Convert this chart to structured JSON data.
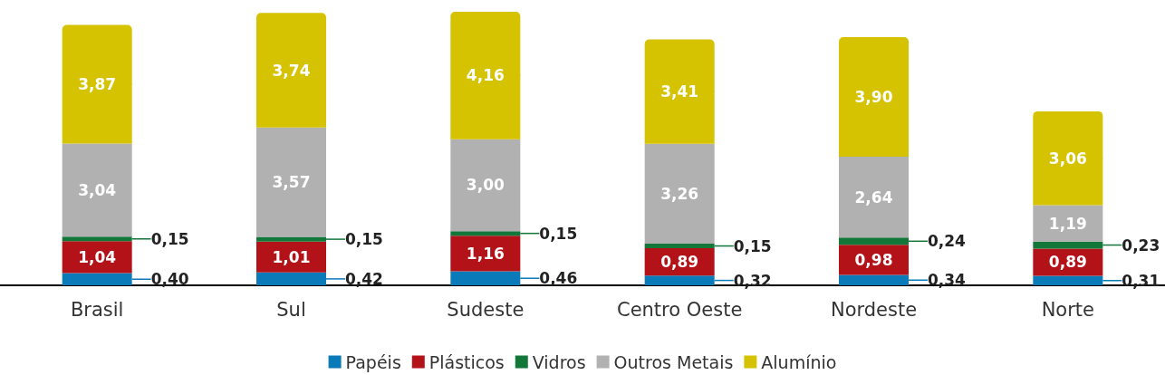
{
  "chart_data": {
    "type": "bar",
    "stacked": true,
    "categories": [
      "Brasil",
      "Sul",
      "Sudeste",
      "Centro Oeste",
      "Nordeste",
      "Norte"
    ],
    "series": [
      {
        "name": "Papéis",
        "color": "#0a7bb8",
        "values": [
          0.4,
          0.42,
          0.46,
          0.32,
          0.34,
          0.31
        ],
        "value_labels": [
          "0,40",
          "0,42",
          "0,46",
          "0,32",
          "0,34",
          "0,31"
        ]
      },
      {
        "name": "Plásticos",
        "color": "#b31219",
        "values": [
          1.04,
          1.01,
          1.16,
          0.89,
          0.98,
          0.89
        ],
        "value_labels": [
          "1,04",
          "1,01",
          "1,16",
          "0,89",
          "0,98",
          "0,89"
        ]
      },
      {
        "name": "Vidros",
        "color": "#13773a",
        "values": [
          0.15,
          0.15,
          0.15,
          0.15,
          0.24,
          0.23
        ],
        "value_labels": [
          "0,15",
          "0,15",
          "0,15",
          "0,15",
          "0,24",
          "0,23"
        ]
      },
      {
        "name": "Outros Metais",
        "color": "#b1b1b1",
        "values": [
          3.04,
          3.57,
          3.0,
          3.26,
          2.64,
          1.19
        ],
        "value_labels": [
          "3,04",
          "3,57",
          "3,00",
          "3,26",
          "2,64",
          "1,19"
        ]
      },
      {
        "name": "Alumínio",
        "color": "#d5c200",
        "values": [
          3.87,
          3.74,
          4.16,
          3.41,
          3.9,
          3.06
        ],
        "value_labels": [
          "3,87",
          "3,74",
          "4,16",
          "3,41",
          "3,90",
          "3,06"
        ]
      }
    ],
    "legend": "bottom"
  }
}
